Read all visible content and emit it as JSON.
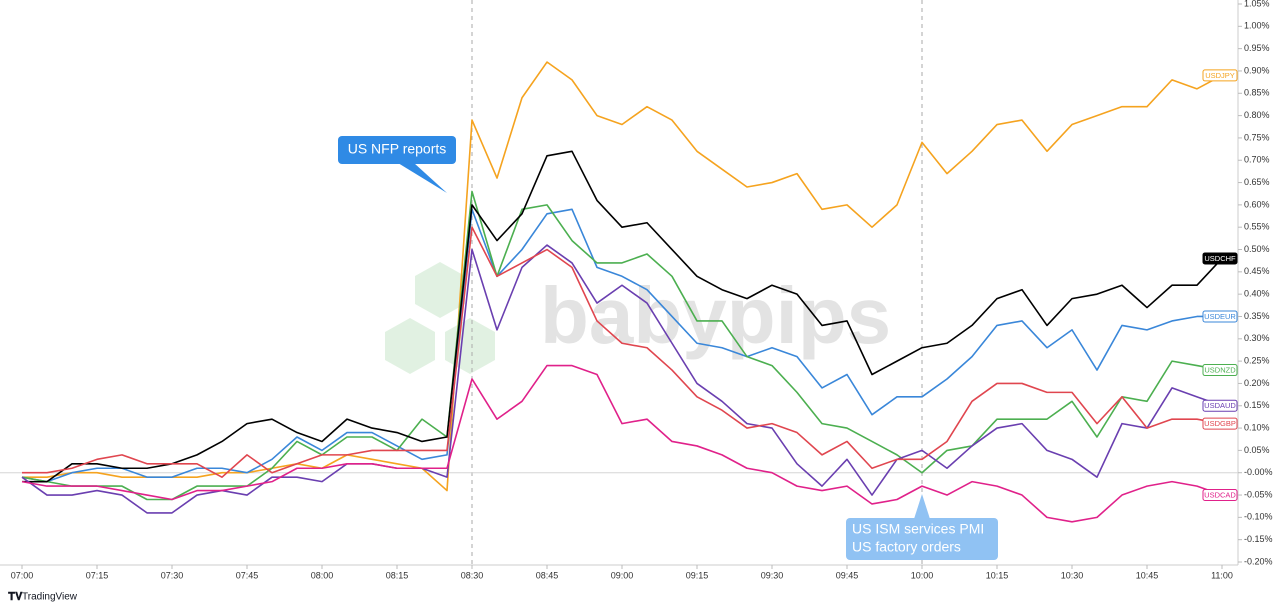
{
  "chart_data": {
    "type": "line",
    "watermark": "babypips",
    "source": "TradingView",
    "annotations": [
      [
        "US NFP reports"
      ],
      [
        "US ISM services PMI",
        "US factory orders"
      ]
    ],
    "categories": [
      "07:00",
      null,
      null,
      "07:15",
      null,
      null,
      "07:30",
      null,
      null,
      "07:45",
      null,
      null,
      "08:00",
      null,
      null,
      "08:15",
      null,
      null,
      "08:30",
      null,
      null,
      "08:45",
      null,
      null,
      "09:00",
      null,
      null,
      "09:15",
      null,
      null,
      "09:30",
      null,
      null,
      "09:45",
      null,
      null,
      "10:00",
      null,
      null,
      "10:15",
      null,
      null,
      "10:30",
      null,
      null,
      "10:45",
      null,
      null,
      "11:00"
    ],
    "ylim": [
      -0.2,
      1.05
    ],
    "yticks": [
      {
        "value": -0.2,
        "label": "-0.20%"
      },
      {
        "value": -0.15,
        "label": "-0.15%"
      },
      {
        "value": -0.1,
        "label": "-0.10%"
      },
      {
        "value": -0.05,
        "label": "-0.05%"
      },
      {
        "value": 0,
        "label": "-0.00%"
      },
      {
        "value": 0.05,
        "label": "0.05%"
      },
      {
        "value": 0.1,
        "label": "0.10%"
      },
      {
        "value": 0.15,
        "label": "0.15%"
      },
      {
        "value": 0.2,
        "label": "0.20%"
      },
      {
        "value": 0.25,
        "label": "0.25%"
      },
      {
        "value": 0.3,
        "label": "0.30%"
      },
      {
        "value": 0.35,
        "label": "0.35%"
      },
      {
        "value": 0.4,
        "label": "0.40%"
      },
      {
        "value": 0.45,
        "label": "0.45%"
      },
      {
        "value": 0.5,
        "label": "0.50%"
      },
      {
        "value": 0.55,
        "label": "0.55%"
      },
      {
        "value": 0.6,
        "label": "0.60%"
      },
      {
        "value": 0.65,
        "label": "0.65%"
      },
      {
        "value": 0.7,
        "label": "0.70%"
      },
      {
        "value": 0.75,
        "label": "0.75%"
      },
      {
        "value": 0.8,
        "label": "0.80%"
      },
      {
        "value": 0.85,
        "label": "0.85%"
      },
      {
        "value": 0.9,
        "label": "0.90%"
      },
      {
        "value": 0.95,
        "label": "0.95%"
      },
      {
        "value": 1.0,
        "label": "1.00%"
      },
      {
        "value": 1.05,
        "label": "1.05%"
      }
    ],
    "series": [
      {
        "name": "USDJPY",
        "color": "#f5a31f",
        "values": [
          -0.01,
          -0.01,
          0.0,
          0.0,
          -0.01,
          -0.01,
          -0.01,
          -0.01,
          0.0,
          0.0,
          0.01,
          0.02,
          0.01,
          0.04,
          0.03,
          0.02,
          0.01,
          -0.04,
          0.79,
          0.66,
          0.84,
          0.92,
          0.88,
          0.8,
          0.78,
          0.82,
          0.79,
          0.72,
          0.68,
          0.64,
          0.65,
          0.67,
          0.59,
          0.6,
          0.55,
          0.6,
          0.74,
          0.67,
          0.72,
          0.78,
          0.79,
          0.72,
          0.78,
          0.8,
          0.82,
          0.82,
          0.88,
          0.86,
          0.89
        ]
      },
      {
        "name": "USDEUR",
        "color": "#3a87d9",
        "values": [
          -0.01,
          -0.02,
          0.0,
          0.01,
          0.01,
          -0.01,
          -0.01,
          0.01,
          0.01,
          0.0,
          0.03,
          0.08,
          0.05,
          0.09,
          0.09,
          0.06,
          0.03,
          0.04,
          0.59,
          0.44,
          0.5,
          0.58,
          0.59,
          0.46,
          0.44,
          0.41,
          0.35,
          0.29,
          0.28,
          0.26,
          0.28,
          0.26,
          0.19,
          0.22,
          0.13,
          0.17,
          0.17,
          0.21,
          0.26,
          0.33,
          0.34,
          0.28,
          0.32,
          0.23,
          0.33,
          0.32,
          0.34,
          0.35,
          0.35
        ]
      },
      {
        "name": "USDNZD",
        "color": "#4caf50",
        "values": [
          -0.01,
          -0.02,
          -0.03,
          -0.03,
          -0.03,
          -0.06,
          -0.06,
          -0.03,
          -0.03,
          -0.03,
          0.01,
          0.07,
          0.04,
          0.08,
          0.08,
          0.05,
          0.12,
          0.08,
          0.63,
          0.44,
          0.59,
          0.6,
          0.52,
          0.47,
          0.47,
          0.49,
          0.44,
          0.34,
          0.34,
          0.26,
          0.24,
          0.18,
          0.11,
          0.1,
          0.07,
          0.04,
          0.0,
          0.05,
          0.06,
          0.12,
          0.12,
          0.12,
          0.16,
          0.08,
          0.17,
          0.16,
          0.25,
          0.24,
          0.23
        ]
      },
      {
        "name": "USDCHF",
        "color": "#000000",
        "values": [
          -0.02,
          -0.02,
          0.02,
          0.02,
          0.01,
          0.01,
          0.02,
          0.04,
          0.07,
          0.11,
          0.12,
          0.09,
          0.07,
          0.12,
          0.1,
          0.09,
          0.07,
          0.08,
          0.6,
          0.52,
          0.58,
          0.71,
          0.72,
          0.61,
          0.55,
          0.56,
          0.5,
          0.44,
          0.41,
          0.39,
          0.42,
          0.4,
          0.33,
          0.34,
          0.22,
          0.25,
          0.28,
          0.29,
          0.33,
          0.39,
          0.41,
          0.33,
          0.39,
          0.4,
          0.42,
          0.37,
          0.42,
          0.42,
          0.48
        ]
      },
      {
        "name": "USDAUD",
        "color": "#6a3fb0",
        "values": [
          -0.01,
          -0.05,
          -0.05,
          -0.04,
          -0.05,
          -0.09,
          -0.09,
          -0.05,
          -0.04,
          -0.05,
          -0.01,
          -0.01,
          -0.02,
          0.02,
          0.02,
          0.01,
          0.01,
          -0.01,
          0.5,
          0.32,
          0.46,
          0.51,
          0.47,
          0.38,
          0.42,
          0.38,
          0.29,
          0.2,
          0.16,
          0.11,
          0.1,
          0.02,
          -0.03,
          0.03,
          -0.05,
          0.03,
          0.05,
          0.01,
          0.06,
          0.1,
          0.11,
          0.05,
          0.03,
          -0.01,
          0.11,
          0.1,
          0.19,
          0.17,
          0.15
        ]
      },
      {
        "name": "USDGBP",
        "color": "#e0464f",
        "values": [
          0.0,
          0.0,
          0.01,
          0.03,
          0.04,
          0.02,
          0.02,
          0.02,
          -0.01,
          0.04,
          0.0,
          0.02,
          0.04,
          0.04,
          0.05,
          0.05,
          0.05,
          0.05,
          0.55,
          0.44,
          0.47,
          0.5,
          0.46,
          0.34,
          0.29,
          0.28,
          0.23,
          0.17,
          0.14,
          0.1,
          0.11,
          0.09,
          0.04,
          0.07,
          0.01,
          0.03,
          0.03,
          0.07,
          0.16,
          0.2,
          0.2,
          0.18,
          0.18,
          0.11,
          0.17,
          0.1,
          0.12,
          0.12,
          0.11
        ]
      },
      {
        "name": "USDCAD",
        "color": "#e0218a",
        "values": [
          -0.02,
          -0.03,
          -0.03,
          -0.03,
          -0.04,
          -0.05,
          -0.06,
          -0.04,
          -0.04,
          -0.03,
          -0.02,
          0.01,
          0.01,
          0.02,
          0.02,
          0.01,
          0.01,
          0.01,
          0.21,
          0.12,
          0.16,
          0.24,
          0.24,
          0.22,
          0.11,
          0.12,
          0.07,
          0.06,
          0.04,
          0.01,
          0.0,
          -0.03,
          -0.04,
          -0.03,
          -0.07,
          -0.06,
          -0.03,
          -0.05,
          -0.02,
          -0.03,
          -0.05,
          -0.1,
          -0.11,
          -0.1,
          -0.05,
          -0.03,
          -0.02,
          -0.03,
          -0.05
        ]
      }
    ]
  }
}
